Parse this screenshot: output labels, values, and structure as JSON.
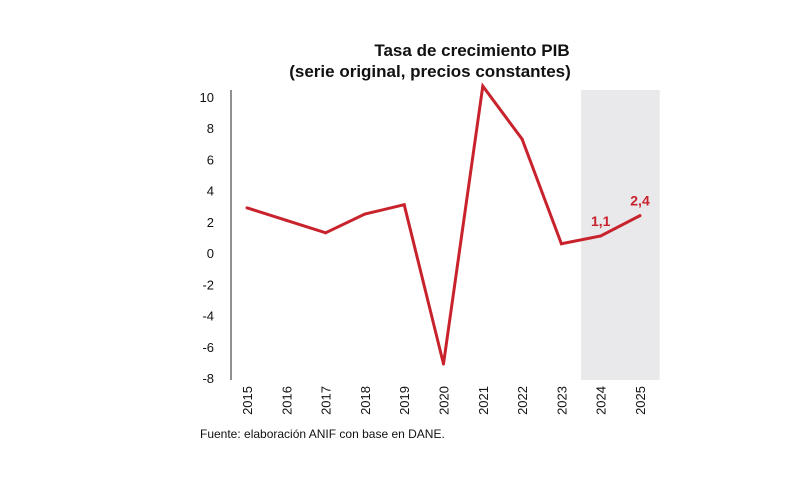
{
  "chart_data": {
    "type": "line",
    "title": "Tasa de crecimiento PIB",
    "subtitle": "(serie original, precios constantes)",
    "xlabel": "",
    "ylabel": "",
    "categories": [
      "2015",
      "2016",
      "2017",
      "2018",
      "2019",
      "2020",
      "2021",
      "2022",
      "2023",
      "2024",
      "2025"
    ],
    "series": [
      {
        "values": [
          2.9,
          2.1,
          1.3,
          2.5,
          3.1,
          -7.1,
          10.7,
          7.3,
          0.6,
          1.1,
          2.4
        ]
      }
    ],
    "ylim": [
      -8,
      10
    ],
    "yticks": [
      "10",
      "8",
      "6",
      "4",
      "2",
      "0",
      "-2",
      "-4",
      "-6",
      "-8"
    ],
    "yticks_values": [
      10,
      8,
      6,
      4,
      2,
      0,
      -2,
      -4,
      -6,
      -8
    ],
    "projection_from": "2024",
    "annotations": [
      {
        "category": "2024",
        "text": "1,1"
      },
      {
        "category": "2025",
        "text": "2,4"
      }
    ],
    "grid": false,
    "legend": "none",
    "colors": {
      "line": "#c8232c",
      "projection_band": "#e9e9ec",
      "axis": "#222222"
    }
  },
  "source": "Fuente: elaboración ANIF con base en DANE."
}
